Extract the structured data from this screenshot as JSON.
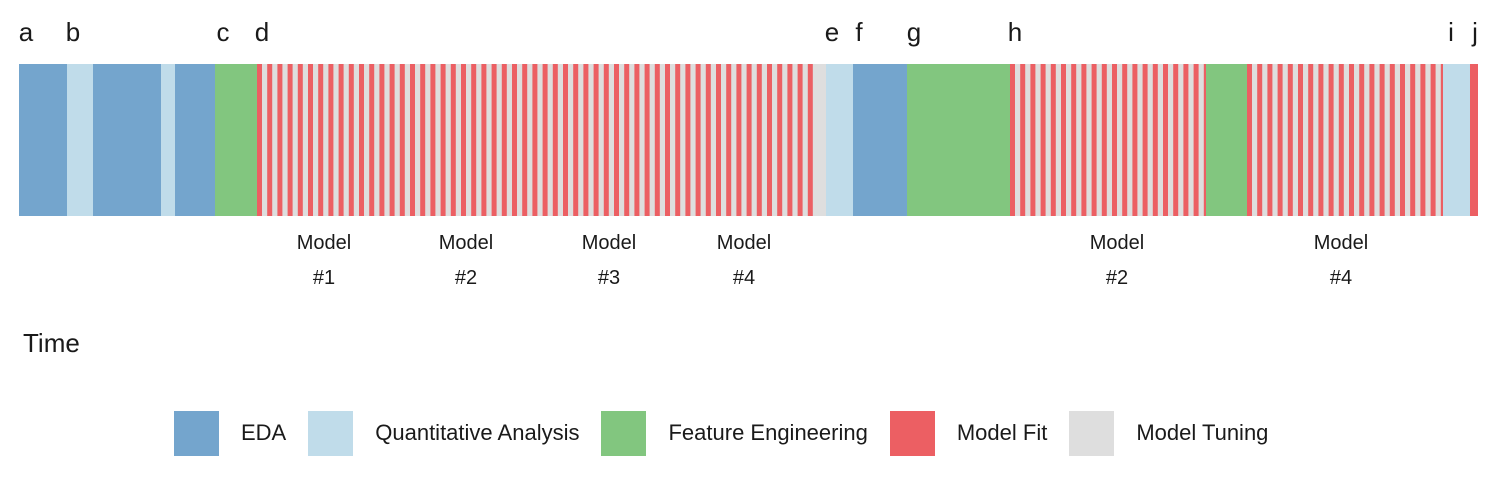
{
  "colors": {
    "eda": "#74a5cd",
    "quantitative": "#c0dcea",
    "feature": "#82c67f",
    "fit": "#ec5f63",
    "tuning": "#dedede"
  },
  "timeline": {
    "markers": [
      "a",
      "b",
      "c",
      "d",
      "e",
      "f",
      "g",
      "h",
      "i",
      "j"
    ],
    "model_labels": [
      {
        "line1": "Model",
        "line2": "#1"
      },
      {
        "line1": "Model",
        "line2": "#2"
      },
      {
        "line1": "Model",
        "line2": "#3"
      },
      {
        "line1": "Model",
        "line2": "#4"
      },
      {
        "line1": "Model",
        "line2": "#2"
      },
      {
        "line1": "Model",
        "line2": "#4"
      }
    ]
  },
  "axis_label": "Time",
  "legend": [
    {
      "label": "EDA",
      "color": "#74a5cd"
    },
    {
      "label": "Quantitative Analysis",
      "color": "#c0dcea"
    },
    {
      "label": "Feature Engineering",
      "color": "#82c67f"
    },
    {
      "label": "Model Fit",
      "color": "#ec5f63"
    },
    {
      "label": "Model Tuning",
      "color": "#dedede"
    }
  ]
}
